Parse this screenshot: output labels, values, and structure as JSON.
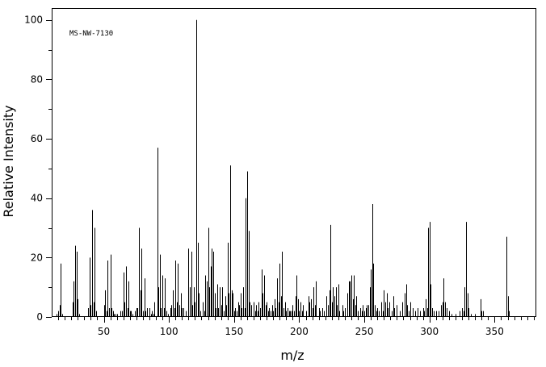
{
  "chart_data": {
    "type": "bar",
    "title": "",
    "annotation": "MS-NW-7130",
    "xlabel": "m/z",
    "ylabel": "Relative Intensity",
    "xlim": [
      10,
      382
    ],
    "ylim": [
      0,
      104
    ],
    "x_major_ticks": [
      50,
      100,
      150,
      200,
      250,
      300,
      350
    ],
    "y_major_ticks": [
      0,
      20,
      40,
      60,
      80,
      100
    ],
    "grid": false,
    "colors": {
      "axis": "#000000",
      "bars": "#000000",
      "background": "#ffffff"
    },
    "peaks": [
      [
        14,
        1
      ],
      [
        15,
        2
      ],
      [
        16,
        4
      ],
      [
        17,
        18
      ],
      [
        18,
        1
      ],
      [
        26,
        5
      ],
      [
        27,
        12
      ],
      [
        28,
        24
      ],
      [
        29,
        22
      ],
      [
        30,
        6
      ],
      [
        31,
        1
      ],
      [
        38,
        3
      ],
      [
        39,
        20
      ],
      [
        40,
        4
      ],
      [
        41,
        36
      ],
      [
        42,
        5
      ],
      [
        43,
        30
      ],
      [
        44,
        2
      ],
      [
        50,
        4
      ],
      [
        51,
        9
      ],
      [
        52,
        2
      ],
      [
        53,
        19
      ],
      [
        54,
        3
      ],
      [
        55,
        21
      ],
      [
        56,
        3
      ],
      [
        57,
        2
      ],
      [
        58,
        1
      ],
      [
        59,
        1
      ],
      [
        60,
        1
      ],
      [
        63,
        2
      ],
      [
        64,
        2
      ],
      [
        65,
        15
      ],
      [
        66,
        5
      ],
      [
        67,
        17
      ],
      [
        68,
        3
      ],
      [
        69,
        12
      ],
      [
        70,
        2
      ],
      [
        71,
        2
      ],
      [
        72,
        1
      ],
      [
        74,
        2
      ],
      [
        75,
        3
      ],
      [
        76,
        3
      ],
      [
        77,
        30
      ],
      [
        78,
        9
      ],
      [
        79,
        23
      ],
      [
        80,
        2
      ],
      [
        81,
        13
      ],
      [
        82,
        2
      ],
      [
        83,
        3
      ],
      [
        85,
        3
      ],
      [
        86,
        1
      ],
      [
        87,
        2
      ],
      [
        88,
        1
      ],
      [
        89,
        5
      ],
      [
        91,
        57
      ],
      [
        92,
        10
      ],
      [
        93,
        21
      ],
      [
        94,
        3
      ],
      [
        95,
        14
      ],
      [
        96,
        3
      ],
      [
        97,
        13
      ],
      [
        98,
        2
      ],
      [
        99,
        1
      ],
      [
        101,
        3
      ],
      [
        102,
        4
      ],
      [
        103,
        9
      ],
      [
        104,
        3
      ],
      [
        105,
        19
      ],
      [
        106,
        5
      ],
      [
        107,
        18
      ],
      [
        108,
        4
      ],
      [
        109,
        8
      ],
      [
        110,
        3
      ],
      [
        111,
        3
      ],
      [
        113,
        2
      ],
      [
        115,
        23
      ],
      [
        116,
        10
      ],
      [
        117,
        22
      ],
      [
        118,
        4
      ],
      [
        119,
        10
      ],
      [
        120,
        5
      ],
      [
        121,
        100
      ],
      [
        122,
        25
      ],
      [
        123,
        8
      ],
      [
        124,
        2
      ],
      [
        126,
        5
      ],
      [
        127,
        2
      ],
      [
        128,
        14
      ],
      [
        129,
        12
      ],
      [
        130,
        30
      ],
      [
        131,
        10
      ],
      [
        132,
        17
      ],
      [
        133,
        23
      ],
      [
        134,
        22
      ],
      [
        135,
        8
      ],
      [
        136,
        3
      ],
      [
        137,
        11
      ],
      [
        138,
        3
      ],
      [
        139,
        10
      ],
      [
        140,
        4
      ],
      [
        141,
        10
      ],
      [
        142,
        2
      ],
      [
        143,
        7
      ],
      [
        144,
        4
      ],
      [
        145,
        25
      ],
      [
        146,
        8
      ],
      [
        147,
        51
      ],
      [
        148,
        9
      ],
      [
        149,
        8
      ],
      [
        150,
        2
      ],
      [
        151,
        3
      ],
      [
        152,
        2
      ],
      [
        153,
        5
      ],
      [
        154,
        4
      ],
      [
        155,
        8
      ],
      [
        156,
        3
      ],
      [
        157,
        10
      ],
      [
        158,
        3
      ],
      [
        159,
        40
      ],
      [
        160,
        49
      ],
      [
        161,
        29
      ],
      [
        162,
        5
      ],
      [
        163,
        4
      ],
      [
        165,
        5
      ],
      [
        166,
        2
      ],
      [
        167,
        4
      ],
      [
        168,
        2
      ],
      [
        169,
        5
      ],
      [
        170,
        3
      ],
      [
        171,
        16
      ],
      [
        172,
        8
      ],
      [
        173,
        14
      ],
      [
        174,
        4
      ],
      [
        175,
        5
      ],
      [
        176,
        2
      ],
      [
        177,
        3
      ],
      [
        178,
        2
      ],
      [
        179,
        4
      ],
      [
        180,
        2
      ],
      [
        181,
        6
      ],
      [
        182,
        3
      ],
      [
        183,
        13
      ],
      [
        184,
        5
      ],
      [
        185,
        18
      ],
      [
        186,
        7
      ],
      [
        187,
        22
      ],
      [
        188,
        3
      ],
      [
        189,
        5
      ],
      [
        190,
        2
      ],
      [
        191,
        3
      ],
      [
        192,
        2
      ],
      [
        193,
        2
      ],
      [
        194,
        2
      ],
      [
        195,
        4
      ],
      [
        196,
        2
      ],
      [
        197,
        7
      ],
      [
        198,
        14
      ],
      [
        199,
        6
      ],
      [
        200,
        2
      ],
      [
        201,
        5
      ],
      [
        202,
        2
      ],
      [
        203,
        4
      ],
      [
        205,
        2
      ],
      [
        207,
        7
      ],
      [
        208,
        5
      ],
      [
        209,
        6
      ],
      [
        210,
        3
      ],
      [
        211,
        10
      ],
      [
        212,
        4
      ],
      [
        213,
        12
      ],
      [
        215,
        3
      ],
      [
        216,
        2
      ],
      [
        218,
        3
      ],
      [
        219,
        2
      ],
      [
        221,
        7
      ],
      [
        222,
        4
      ],
      [
        223,
        9
      ],
      [
        224,
        31
      ],
      [
        225,
        5
      ],
      [
        226,
        10
      ],
      [
        227,
        7
      ],
      [
        228,
        10
      ],
      [
        229,
        4
      ],
      [
        230,
        11
      ],
      [
        231,
        2
      ],
      [
        233,
        4
      ],
      [
        234,
        2
      ],
      [
        235,
        3
      ],
      [
        237,
        8
      ],
      [
        238,
        12
      ],
      [
        239,
        12
      ],
      [
        240,
        14
      ],
      [
        241,
        6
      ],
      [
        242,
        14
      ],
      [
        243,
        4
      ],
      [
        244,
        7
      ],
      [
        245,
        2
      ],
      [
        247,
        3
      ],
      [
        248,
        2
      ],
      [
        249,
        4
      ],
      [
        250,
        2
      ],
      [
        251,
        3
      ],
      [
        252,
        4
      ],
      [
        253,
        4
      ],
      [
        254,
        10
      ],
      [
        255,
        16
      ],
      [
        256,
        38
      ],
      [
        257,
        18
      ],
      [
        258,
        4
      ],
      [
        259,
        2
      ],
      [
        260,
        3
      ],
      [
        261,
        2
      ],
      [
        263,
        5
      ],
      [
        264,
        2
      ],
      [
        265,
        9
      ],
      [
        266,
        5
      ],
      [
        267,
        8
      ],
      [
        268,
        3
      ],
      [
        269,
        5
      ],
      [
        271,
        2
      ],
      [
        272,
        7
      ],
      [
        273,
        3
      ],
      [
        275,
        4
      ],
      [
        277,
        2
      ],
      [
        279,
        5
      ],
      [
        281,
        8
      ],
      [
        282,
        11
      ],
      [
        283,
        4
      ],
      [
        284,
        2
      ],
      [
        285,
        5
      ],
      [
        287,
        3
      ],
      [
        289,
        2
      ],
      [
        291,
        3
      ],
      [
        293,
        2
      ],
      [
        295,
        3
      ],
      [
        296,
        2
      ],
      [
        297,
        6
      ],
      [
        298,
        3
      ],
      [
        299,
        30
      ],
      [
        300,
        32
      ],
      [
        301,
        11
      ],
      [
        302,
        3
      ],
      [
        303,
        2
      ],
      [
        305,
        2
      ],
      [
        307,
        2
      ],
      [
        309,
        4
      ],
      [
        310,
        5
      ],
      [
        311,
        13
      ],
      [
        312,
        5
      ],
      [
        313,
        3
      ],
      [
        315,
        2
      ],
      [
        317,
        1
      ],
      [
        320,
        1
      ],
      [
        323,
        2
      ],
      [
        325,
        3
      ],
      [
        326,
        2
      ],
      [
        327,
        10
      ],
      [
        328,
        32
      ],
      [
        329,
        8
      ],
      [
        330,
        3
      ],
      [
        332,
        1
      ],
      [
        335,
        1
      ],
      [
        339,
        6
      ],
      [
        340,
        2
      ],
      [
        341,
        2
      ],
      [
        359,
        27
      ],
      [
        360,
        7
      ],
      [
        361,
        2
      ]
    ]
  }
}
